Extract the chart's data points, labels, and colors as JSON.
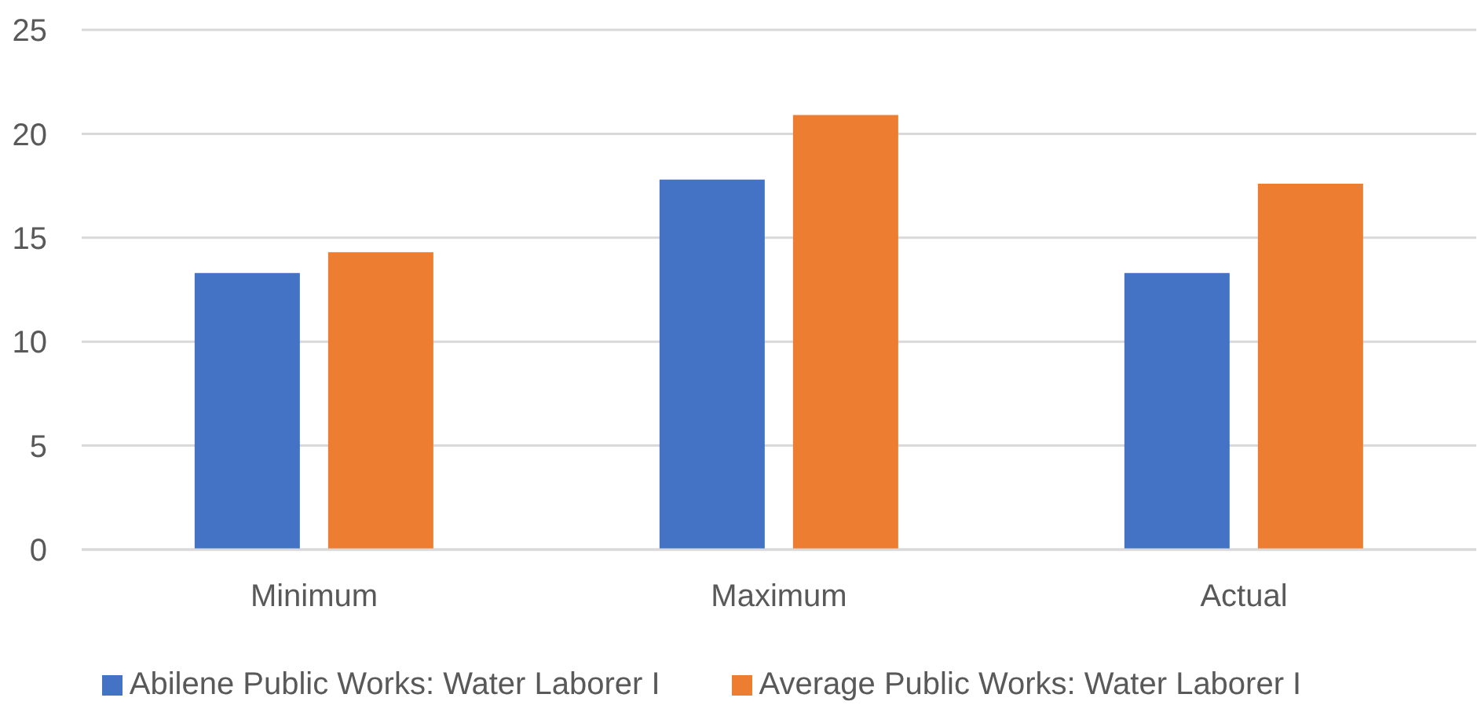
{
  "chart_data": {
    "type": "bar",
    "categories": [
      "Minimum",
      "Maximum",
      "Actual"
    ],
    "series": [
      {
        "name": "Abilene Public Works: Water Laborer I",
        "color": "#4472c4",
        "values": [
          13.3,
          17.8,
          13.3
        ]
      },
      {
        "name": "Average Public Works: Water Laborer I",
        "color": "#ed7d31",
        "values": [
          14.3,
          20.9,
          17.6
        ]
      }
    ],
    "ylim": [
      0,
      25
    ],
    "yticks": [
      0,
      5,
      10,
      15,
      20,
      25
    ],
    "grid": "y",
    "legend": "bottom"
  }
}
